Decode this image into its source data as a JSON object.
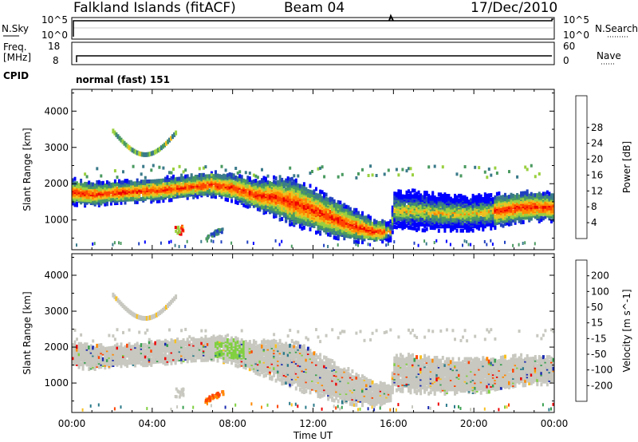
{
  "header": {
    "station": "Falkland Islands (fitACF)",
    "beam": "Beam 04",
    "date": "17/Dec/2010"
  },
  "strip_labels": {
    "nsky": "N.Sky",
    "nsky_ticks": [
      "10^5",
      "10^0"
    ],
    "nsearch": "N.Search",
    "nsearch_ticks": [
      "10^5",
      "10^0"
    ],
    "freq": "Freq.",
    "freq_unit": "[MHz]",
    "freq_ticks": [
      "18",
      "8"
    ],
    "nave": "Nave",
    "nave_ticks": [
      "60",
      "0"
    ],
    "cpid": "CPID",
    "cpid_value": "normal (fast) 151"
  },
  "chart_data": [
    {
      "type": "heatmap",
      "name": "power-panel",
      "ylabel": "Slant Range [km]",
      "yticks": [
        1000,
        2000,
        3000,
        4000
      ],
      "ylim": [
        180,
        4600
      ],
      "xlim_hours": [
        0,
        24
      ],
      "colorbar_label": "Power [dB]",
      "colorbar_ticks": [
        4,
        8,
        12,
        16,
        20,
        24,
        28
      ],
      "colorbar_colors": [
        "#0000ff",
        "#2040c0",
        "#3a7a8a",
        "#4a9a60",
        "#9ad040",
        "#f0c020",
        "#ff8800",
        "#ff4400",
        "#ee0000"
      ],
      "main_band": {
        "hours": [
          0,
          1,
          2,
          3,
          4,
          5,
          6,
          7,
          8,
          9,
          10,
          11,
          12,
          13,
          14,
          15,
          15.8,
          16,
          17,
          18,
          19,
          20,
          21,
          22,
          23,
          24
        ],
        "center_km": [
          1780,
          1720,
          1760,
          1800,
          1830,
          1880,
          1940,
          1990,
          1900,
          1720,
          1640,
          1500,
          1280,
          1060,
          850,
          700,
          700,
          1300,
          1270,
          1220,
          1200,
          1200,
          1250,
          1350,
          1380,
          1350
        ],
        "halfwidth_km": [
          280,
          260,
          230,
          240,
          250,
          250,
          240,
          260,
          300,
          320,
          420,
          520,
          470,
          420,
          350,
          250,
          200,
          380,
          420,
          400,
          380,
          380,
          360,
          330,
          320,
          300
        ]
      }
    },
    {
      "type": "heatmap",
      "name": "velocity-panel",
      "ylabel": "Slant Range [km]",
      "yticks": [
        1000,
        2000,
        3000,
        4000
      ],
      "ylim": [
        180,
        4600
      ],
      "xlim_hours": [
        0,
        24
      ],
      "xticks": [
        "00:00",
        "04:00",
        "08:00",
        "12:00",
        "16:00",
        "20:00",
        "00:00"
      ],
      "xlabel": "Time UT",
      "colorbar_label": "Velocity [m s^-1]",
      "colorbar_ticks": [
        200,
        100,
        50,
        15,
        -15,
        -50,
        -100,
        -200
      ],
      "colorbar_colors": [
        "#1a2ab0",
        "#2a7a8a",
        "#3aa050",
        "#80d040",
        "#c8c8c0",
        "#f8c020",
        "#ff8800",
        "#ff4400",
        "#ee0000"
      ]
    }
  ]
}
